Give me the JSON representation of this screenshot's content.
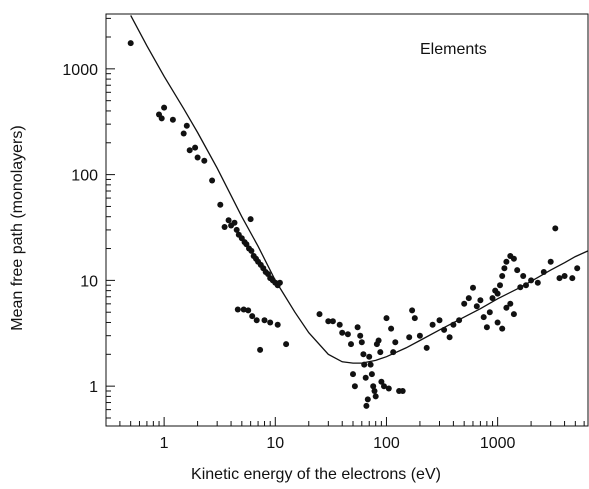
{
  "chart_data": {
    "type": "scatter",
    "title": "",
    "xlabel": "Kinetic energy of the electrons (eV)",
    "ylabel": "Mean free path (monolayers)",
    "xscale": "log",
    "yscale": "log",
    "xlim": [
      0.3,
      6500
    ],
    "ylim": [
      0.42,
      3300
    ],
    "x_ticks": [
      1,
      10,
      100,
      1000
    ],
    "x_tick_labels": [
      "1",
      "10",
      "100",
      "1000"
    ],
    "y_ticks": [
      1,
      10,
      100,
      1000
    ],
    "y_tick_labels": [
      "1",
      "10",
      "100",
      "1000"
    ],
    "grid": false,
    "annotation": "Elements",
    "colors": {
      "points": "#111111",
      "curve": "#111111",
      "axes": "#111111"
    },
    "series": [
      {
        "kind": "points",
        "points": [
          [
            0.5,
            1750
          ],
          [
            0.9,
            370
          ],
          [
            1.0,
            430
          ],
          [
            0.95,
            340
          ],
          [
            1.2,
            330
          ],
          [
            1.5,
            245
          ],
          [
            1.6,
            290
          ],
          [
            1.7,
            170
          ],
          [
            1.9,
            180
          ],
          [
            2.0,
            145
          ],
          [
            2.3,
            135
          ],
          [
            2.7,
            88
          ],
          [
            3.2,
            52
          ],
          [
            3.5,
            32
          ],
          [
            3.8,
            37
          ],
          [
            4.0,
            33
          ],
          [
            4.3,
            35
          ],
          [
            4.5,
            30
          ],
          [
            4.7,
            27
          ],
          [
            5.0,
            25
          ],
          [
            5.3,
            23
          ],
          [
            5.5,
            22
          ],
          [
            5.8,
            20
          ],
          [
            6.1,
            19
          ],
          [
            6.4,
            17
          ],
          [
            6.7,
            16
          ],
          [
            7.0,
            15
          ],
          [
            7.4,
            14
          ],
          [
            7.8,
            13
          ],
          [
            8.2,
            12
          ],
          [
            8.6,
            11.5
          ],
          [
            9.0,
            10.5
          ],
          [
            9.5,
            10
          ],
          [
            10.0,
            9.5
          ],
          [
            10.5,
            9
          ],
          [
            11,
            9.5
          ],
          [
            6.0,
            38
          ],
          [
            4.6,
            5.3
          ],
          [
            5.2,
            5.3
          ],
          [
            5.7,
            5.2
          ],
          [
            6.2,
            4.6
          ],
          [
            6.8,
            4.2
          ],
          [
            7.3,
            2.2
          ],
          [
            8.0,
            4.2
          ],
          [
            9.0,
            4.0
          ],
          [
            10.5,
            3.8
          ],
          [
            12.5,
            2.5
          ],
          [
            25,
            4.8
          ],
          [
            30,
            4.1
          ],
          [
            33,
            4.1
          ],
          [
            38,
            3.8
          ],
          [
            40,
            3.2
          ],
          [
            45,
            3.1
          ],
          [
            48,
            2.5
          ],
          [
            50,
            1.3
          ],
          [
            52,
            1.0
          ],
          [
            55,
            3.6
          ],
          [
            58,
            3.0
          ],
          [
            60,
            2.6
          ],
          [
            62,
            2.0
          ],
          [
            63,
            1.6
          ],
          [
            65,
            1.2
          ],
          [
            66,
            0.65
          ],
          [
            68,
            0.75
          ],
          [
            70,
            1.9
          ],
          [
            72,
            1.6
          ],
          [
            74,
            1.3
          ],
          [
            76,
            1.0
          ],
          [
            78,
            0.9
          ],
          [
            80,
            0.8
          ],
          [
            82,
            2.5
          ],
          [
            85,
            2.7
          ],
          [
            88,
            2.1
          ],
          [
            90,
            1.1
          ],
          [
            95,
            1.0
          ],
          [
            100,
            4.4
          ],
          [
            105,
            0.95
          ],
          [
            110,
            3.5
          ],
          [
            115,
            2.1
          ],
          [
            120,
            2.6
          ],
          [
            130,
            0.9
          ],
          [
            140,
            0.9
          ],
          [
            160,
            2.9
          ],
          [
            170,
            5.2
          ],
          [
            180,
            4.4
          ],
          [
            200,
            3.0
          ],
          [
            230,
            2.3
          ],
          [
            260,
            3.8
          ],
          [
            300,
            4.2
          ],
          [
            330,
            3.4
          ],
          [
            370,
            2.9
          ],
          [
            400,
            3.8
          ],
          [
            450,
            4.2
          ],
          [
            500,
            6.0
          ],
          [
            550,
            6.8
          ],
          [
            600,
            8.5
          ],
          [
            650,
            5.7
          ],
          [
            700,
            6.5
          ],
          [
            750,
            4.5
          ],
          [
            800,
            3.6
          ],
          [
            850,
            5.0
          ],
          [
            900,
            6.8
          ],
          [
            950,
            8.0
          ],
          [
            1000,
            7.5
          ],
          [
            1050,
            9.0
          ],
          [
            1100,
            11.0
          ],
          [
            1150,
            13.0
          ],
          [
            1200,
            15.0
          ],
          [
            1300,
            17.0
          ],
          [
            1400,
            16.0
          ],
          [
            1500,
            12.5
          ],
          [
            1600,
            8.6
          ],
          [
            1700,
            11.0
          ],
          [
            1800,
            9.0
          ],
          [
            2000,
            10.0
          ],
          [
            2300,
            9.5
          ],
          [
            2600,
            12.0
          ],
          [
            3000,
            15.0
          ],
          [
            3300,
            31.0
          ],
          [
            3600,
            10.5
          ],
          [
            4000,
            11.0
          ],
          [
            4700,
            10.5
          ],
          [
            5200,
            13.0
          ],
          [
            1000,
            4.0
          ],
          [
            1100,
            3.5
          ],
          [
            1200,
            5.5
          ],
          [
            1300,
            6.0
          ],
          [
            1400,
            4.8
          ]
        ]
      },
      {
        "kind": "curve",
        "points": [
          [
            0.5,
            3200
          ],
          [
            0.7,
            1650
          ],
          [
            1.0,
            850
          ],
          [
            1.5,
            420
          ],
          [
            2.0,
            250
          ],
          [
            3.0,
            115
          ],
          [
            5.0,
            40
          ],
          [
            7.0,
            21
          ],
          [
            10.0,
            10
          ],
          [
            15.0,
            5.0
          ],
          [
            20.0,
            3.2
          ],
          [
            30.0,
            2.0
          ],
          [
            40.0,
            1.7
          ],
          [
            50.0,
            1.65
          ],
          [
            60.0,
            1.65
          ],
          [
            80.0,
            1.75
          ],
          [
            100.0,
            1.9
          ],
          [
            150.0,
            2.3
          ],
          [
            200.0,
            2.7
          ],
          [
            300.0,
            3.4
          ],
          [
            500.0,
            4.5
          ],
          [
            700.0,
            5.4
          ],
          [
            1000.0,
            6.7
          ],
          [
            1500.0,
            8.3
          ],
          [
            2000.0,
            9.8
          ],
          [
            3000.0,
            12.5
          ],
          [
            4000.0,
            14.7
          ],
          [
            5000.0,
            16.8
          ],
          [
            6500.0,
            19.0
          ]
        ]
      }
    ]
  }
}
